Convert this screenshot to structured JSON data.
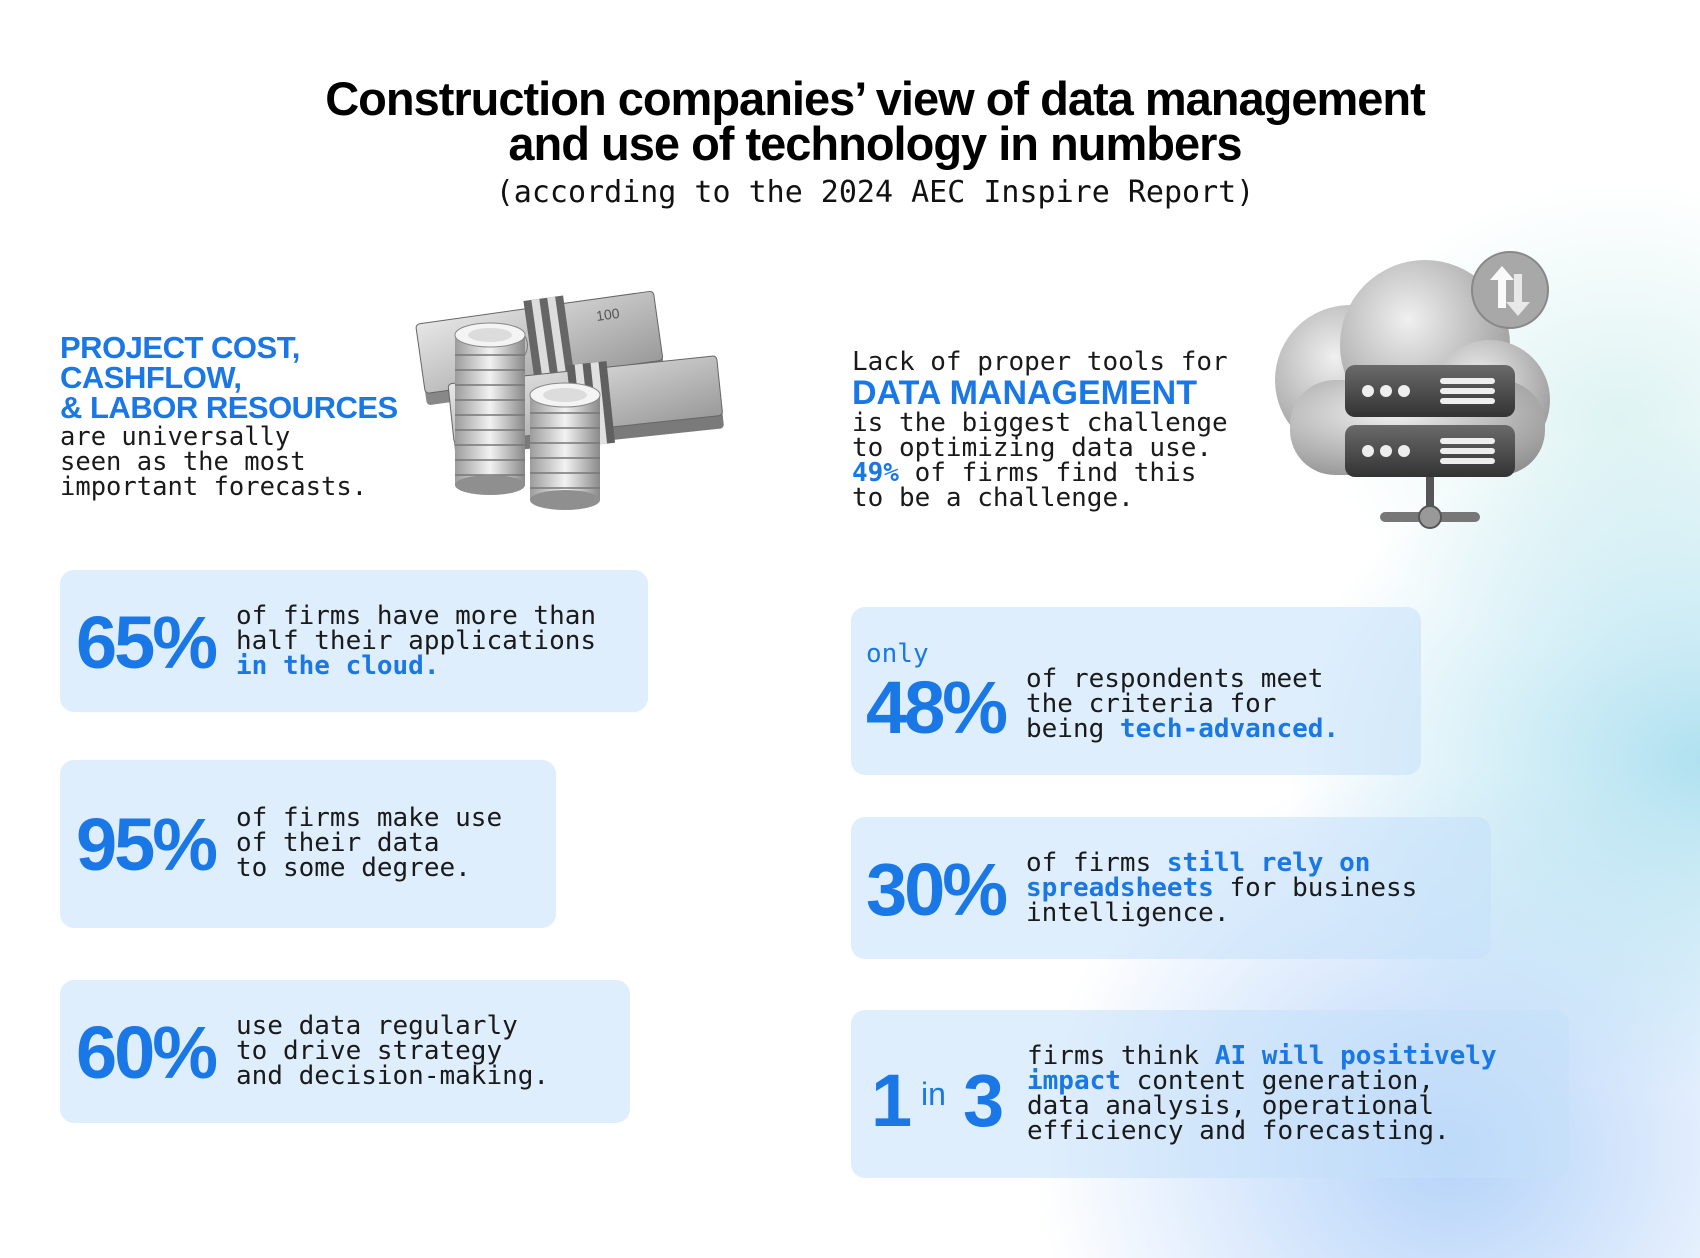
{
  "header": {
    "title_line1": "Construction companies’ view of data management",
    "title_line2": "and use of technology in numbers",
    "subtitle": "(according to the 2024 AEC Inspire Report)"
  },
  "hero_left": {
    "head_line1": "PROJECT COST,",
    "head_line2": "CASHFLOW,",
    "head_line3": "& LABOR RESOURCES",
    "body": "are universally\nseen as the most\nimportant forecasts."
  },
  "hero_right": {
    "line1": "Lack of proper tools for",
    "big": "DATA MANAGEMENT",
    "line2": "is the biggest challenge",
    "line3": "to optimizing data use.",
    "stat": "49%",
    "line4_rest": " of firms find this",
    "line5": "to be a challenge."
  },
  "stats": {
    "s65": {
      "value": "65%",
      "line1": "of firms have more than",
      "line2": "half their applications",
      "line3_accent": "in the cloud."
    },
    "s95": {
      "value": "95%",
      "line1": "of firms make use",
      "line2": "of their data",
      "line3": "to some degree."
    },
    "s60": {
      "value": "60%",
      "line1": "use data regularly",
      "line2": "to drive strategy",
      "line3": "and decision-making."
    },
    "s48": {
      "prefix": "only",
      "value": "48%",
      "line1": "of respondents meet",
      "line2": "the criteria for",
      "line3_plain": "being ",
      "line3_accent": "tech-advanced."
    },
    "s30": {
      "value": "30%",
      "line1_plain": "of firms ",
      "line1_accent": "still rely on",
      "line2_accent": "spreadsheets",
      "line2_plain": " for business",
      "line3": "intelligence."
    },
    "s1in3": {
      "a": "1",
      "in": "in",
      "b": "3",
      "line1_plain": "firms think ",
      "line1_accent": "AI will positively",
      "line2_accent": "impact",
      "line2_plain": " content generation,",
      "line3": "data analysis, operational",
      "line4": "efficiency and forecasting."
    }
  },
  "colors": {
    "accent": "#1a78e6",
    "card": "#d6e9fb",
    "text": "#1a1a1a"
  },
  "illustrations": {
    "left": "money-stack-and-coins",
    "right": "cloud-server-icon"
  }
}
